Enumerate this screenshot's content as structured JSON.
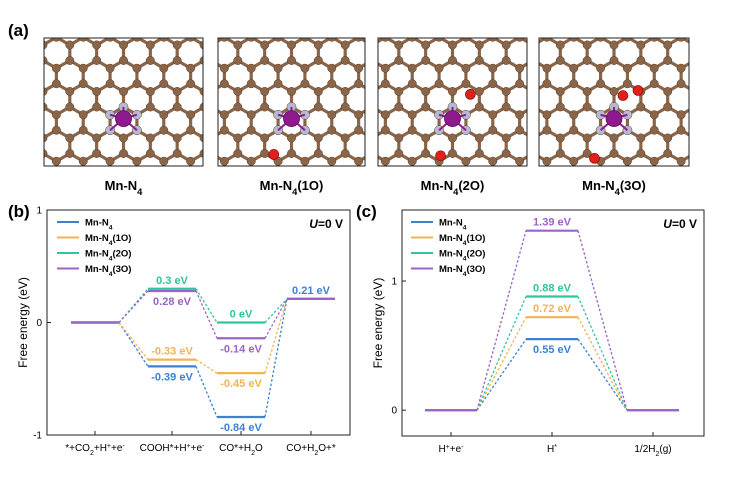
{
  "figure": {
    "panel_a": "(a)",
    "panel_b": "(b)",
    "panel_c": "(c)"
  },
  "structures": [
    {
      "label_main": "Mn-N",
      "label_sub": "4",
      "label_tail": "",
      "oxygen_count": 0
    },
    {
      "label_main": "Mn-N",
      "label_sub": "4",
      "label_tail": "(1O)",
      "oxygen_count": 1
    },
    {
      "label_main": "Mn-N",
      "label_sub": "4",
      "label_tail": "(2O)",
      "oxygen_count": 2
    },
    {
      "label_main": "Mn-N",
      "label_sub": "4",
      "label_tail": "(3O)",
      "oxygen_count": 3
    }
  ],
  "atom_colors": {
    "carbon": "#8a6548",
    "nitrogen": "#b5bad0",
    "manganese": "#8e1a8e",
    "oxygen": "#e0201c",
    "bond": "#8a6548"
  },
  "chart_data": [
    {
      "type": "line",
      "subtype": "free-energy-diagram",
      "panel": "b",
      "ylabel": "Free energy (eV)",
      "condition": {
        "italic": "U",
        "rest": "=0 V"
      },
      "ylim": [
        -1,
        1
      ],
      "yticks": [
        -1,
        0,
        1
      ],
      "categories": [
        "*+CO2+H++e-",
        "COOH*+H++e-",
        "CO*+H2O",
        "CO+H2O+*"
      ],
      "category_labels": [
        [
          {
            "t": "*+CO"
          },
          {
            "t": "2",
            "s": "sub"
          },
          {
            "t": "+H"
          },
          {
            "t": "+",
            "s": "sup"
          },
          {
            "t": "+e"
          },
          {
            "t": "-",
            "s": "sup"
          }
        ],
        [
          {
            "t": "COOH*+H"
          },
          {
            "t": "+",
            "s": "sup"
          },
          {
            "t": "+e"
          },
          {
            "t": "-",
            "s": "sup"
          }
        ],
        [
          {
            "t": "CO*+H"
          },
          {
            "t": "2",
            "s": "sub"
          },
          {
            "t": "O"
          }
        ],
        [
          {
            "t": "CO+H"
          },
          {
            "t": "2",
            "s": "sub"
          },
          {
            "t": "O+*"
          }
        ]
      ],
      "legend": [
        "Mn-N4",
        "Mn-N4(1O)",
        "Mn-N4(2O)",
        "Mn-N4(3O)"
      ],
      "series": [
        {
          "name": "Mn-N4",
          "color": "#3c82d2",
          "values": [
            0,
            -0.39,
            -0.84,
            0.21
          ]
        },
        {
          "name": "Mn-N4(1O)",
          "color": "#f2b350",
          "values": [
            0,
            -0.33,
            -0.45,
            0.21
          ]
        },
        {
          "name": "Mn-N4(2O)",
          "color": "#2fc59d",
          "values": [
            0,
            0.3,
            0,
            0.21
          ]
        },
        {
          "name": "Mn-N4(3O)",
          "color": "#9b62c8",
          "values": [
            0,
            0.28,
            -0.14,
            0.21
          ]
        }
      ],
      "data_labels": [
        {
          "series": 2,
          "index": 1,
          "text": "0.3 eV",
          "pos": "above"
        },
        {
          "series": 3,
          "index": 1,
          "text": "0.28 eV",
          "pos": "below"
        },
        {
          "series": 1,
          "index": 1,
          "text": "-0.33 eV",
          "pos": "above"
        },
        {
          "series": 0,
          "index": 1,
          "text": "-0.39 eV",
          "pos": "below"
        },
        {
          "series": 2,
          "index": 2,
          "text": "0 eV",
          "pos": "above"
        },
        {
          "series": 3,
          "index": 2,
          "text": "-0.14 eV",
          "pos": "below"
        },
        {
          "series": 1,
          "index": 2,
          "text": "-0.45 eV",
          "pos": "below"
        },
        {
          "series": 0,
          "index": 2,
          "text": "-0.84 eV",
          "pos": "below"
        },
        {
          "series": 0,
          "index": 3,
          "text": "0.21 eV",
          "pos": "above"
        }
      ]
    },
    {
      "type": "line",
      "subtype": "free-energy-diagram",
      "panel": "c",
      "ylabel": "Free energy (eV)",
      "condition": {
        "italic": "U",
        "rest": "=0 V"
      },
      "ylim": [
        -0.2,
        1.55
      ],
      "yticks": [
        0,
        1
      ],
      "categories": [
        "H++e-",
        "H*",
        "1/2H2(g)"
      ],
      "category_labels": [
        [
          {
            "t": "H"
          },
          {
            "t": "+",
            "s": "sup"
          },
          {
            "t": "+e"
          },
          {
            "t": "-",
            "s": "sup"
          }
        ],
        [
          {
            "t": "H"
          },
          {
            "t": "*",
            "s": "sup"
          }
        ],
        [
          {
            "t": "1/2H"
          },
          {
            "t": "2",
            "s": "sub"
          },
          {
            "t": "(g)"
          }
        ]
      ],
      "legend": [
        "Mn-N4",
        "Mn-N4(1O)",
        "Mn-N4(2O)",
        "Mn-N4(3O)"
      ],
      "series": [
        {
          "name": "Mn-N4",
          "color": "#3c82d2",
          "values": [
            0,
            0.55,
            0
          ]
        },
        {
          "name": "Mn-N4(1O)",
          "color": "#f2b350",
          "values": [
            0,
            0.72,
            0
          ]
        },
        {
          "name": "Mn-N4(2O)",
          "color": "#2fc59d",
          "values": [
            0,
            0.88,
            0
          ]
        },
        {
          "name": "Mn-N4(3O)",
          "color": "#9b62c8",
          "values": [
            0,
            1.39,
            0
          ]
        }
      ],
      "data_labels": [
        {
          "series": 3,
          "index": 1,
          "text": "1.39 eV",
          "pos": "above"
        },
        {
          "series": 2,
          "index": 1,
          "text": "0.88 eV",
          "pos": "above"
        },
        {
          "series": 1,
          "index": 1,
          "text": "0.72 eV",
          "pos": "above"
        },
        {
          "series": 0,
          "index": 1,
          "text": "0.55 eV",
          "pos": "below"
        }
      ]
    }
  ]
}
